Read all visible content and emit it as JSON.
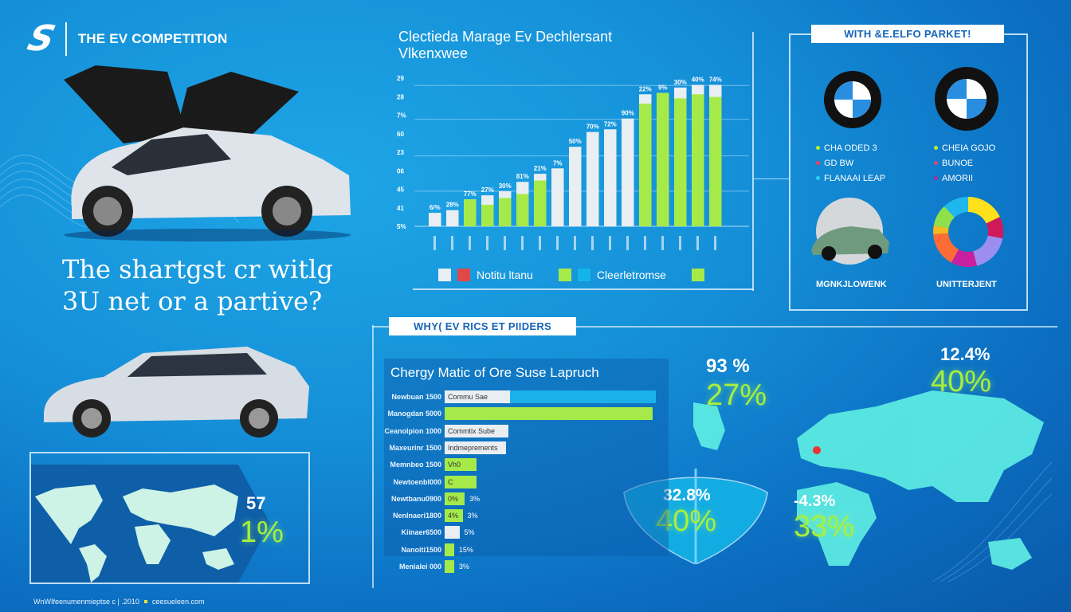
{
  "header": {
    "logo": "S",
    "title": "THE EV COMPETITION"
  },
  "headline": {
    "line1": "The shartgst cr witlg",
    "line2": "3U net or a partive?"
  },
  "chart_data": {
    "type": "bar",
    "title": "Clectieda Marage Ev Dechlersant",
    "subtitle": "Vlkenxwee",
    "ytick_labels": [
      "29",
      "28",
      "7%",
      "60",
      "23",
      "06",
      "45",
      "41",
      "5%"
    ],
    "ylim": [
      0,
      110
    ],
    "grid": true,
    "bars": [
      {
        "label": "6/%",
        "total": 10,
        "green": 0
      },
      {
        "label": "28%",
        "total": 12,
        "green": 0
      },
      {
        "label": "77%",
        "total": 20,
        "green": 20
      },
      {
        "label": "27%",
        "total": 23,
        "green": 16
      },
      {
        "label": "30%",
        "total": 26,
        "green": 21
      },
      {
        "label": "81%",
        "total": 33,
        "green": 24
      },
      {
        "label": "21%",
        "total": 39,
        "green": 34
      },
      {
        "label": "7%",
        "total": 43,
        "green": 0
      },
      {
        "label": "50%",
        "total": 59,
        "green": 0
      },
      {
        "label": "70%",
        "total": 70,
        "green": 0
      },
      {
        "label": "72%",
        "total": 72,
        "green": 0
      },
      {
        "label": "90%",
        "total": 80,
        "green": 0
      },
      {
        "label": "22%",
        "total": 98,
        "green": 91
      },
      {
        "label": "9%",
        "total": 99,
        "green": 99
      },
      {
        "label": "30%",
        "total": 103,
        "green": 95
      },
      {
        "label": "40%",
        "total": 105,
        "green": 98
      },
      {
        "label": "74%",
        "total": 105,
        "green": 96
      }
    ],
    "colors": {
      "green": "#a6ea4a",
      "white": "#e9eef2"
    },
    "legend": [
      {
        "label": "Notitu ltanu",
        "colors": [
          "#e9eef2",
          "#e04848"
        ]
      },
      {
        "label": "Cleerletromse",
        "colors": [
          "#a6ea4a",
          "#14b4e8"
        ]
      }
    ]
  },
  "market": {
    "tag": "WITH &E.ELFO PARKET!",
    "left_legend": [
      {
        "label": "CHA ODED 3",
        "color": "#b6ef3a"
      },
      {
        "label": "GD BW",
        "color": "#e8405a"
      },
      {
        "label": "FLANAAI LEAP",
        "color": "#2ad0f0"
      }
    ],
    "right_legend": [
      {
        "label": "CHEIA GOJO",
        "color": "#b6ef3a"
      },
      {
        "label": "BUNOE",
        "color": "#d04a7a"
      },
      {
        "label": "AMORII",
        "color": "#b02aa0"
      }
    ],
    "car_caption": "MGNKJLOWENK",
    "donut_caption": "UNITTERJENT",
    "donut": [
      {
        "value": 18,
        "color": "#ffe01a"
      },
      {
        "value": 10,
        "color": "#d0195a"
      },
      {
        "value": 18,
        "color": "#9c8ef0"
      },
      {
        "value": 12,
        "color": "#c81ea0"
      },
      {
        "value": 16,
        "color": "#ff6b35"
      },
      {
        "value": 4,
        "color": "#f5b91e"
      },
      {
        "value": 10,
        "color": "#8fe04a"
      },
      {
        "value": 12,
        "color": "#1fb8ee"
      }
    ]
  },
  "section2": {
    "tag": "WHY( EV RICS ET PIIDERS",
    "panel_title": "Chergy Matic of Ore Suse Lapruch",
    "rows": [
      {
        "label": "Newbuan 1500",
        "fill": 1.0,
        "color": "#1bb0e8",
        "inner": "Commu Sae",
        "trail": ""
      },
      {
        "label": "Manogdan 5000",
        "fill": 0.985,
        "color": "#a6ea4a",
        "inner": "",
        "trail": ""
      },
      {
        "label": "Ceanolpion 1000",
        "fill": 0.3,
        "color": "#e9eef2",
        "inner": "Commtix Sube",
        "trail": ""
      },
      {
        "label": "Maxeurinr 1500",
        "fill": 0.29,
        "color": "#e9eef2",
        "inner": "Indmeprements",
        "trail": ""
      },
      {
        "label": "Memnbeo 1500",
        "fill": 0.15,
        "color": "#a6ea4a",
        "inner": "Vh0",
        "trail": ""
      },
      {
        "label": "Newtoenbl000",
        "fill": 0.15,
        "color": "#a6ea4a",
        "inner": "C",
        "trail": ""
      },
      {
        "label": "Newtbanu0900",
        "fill": 0.095,
        "color": "#a6ea4a",
        "inner": "0%",
        "trail": "3%"
      },
      {
        "label": "Nenlnaeri1800",
        "fill": 0.085,
        "color": "#a6ea4a",
        "inner": "4%",
        "trail": "3%"
      },
      {
        "label": "Kiinaer6500",
        "fill": 0.07,
        "color": "#e9eef2",
        "inner": "",
        "trail": "5%"
      },
      {
        "label": "Nanoiti1500",
        "fill": 0.045,
        "color": "#a6ea4a",
        "inner": "",
        "trail": "15%"
      },
      {
        "label": "Menialei 000",
        "fill": 0.045,
        "color": "#a6ea4a",
        "inner": "",
        "trail": "3%"
      }
    ]
  },
  "stats": {
    "a_top": "93 %",
    "a_main": "27%",
    "b_top": "12.4%",
    "b_main": "40%",
    "shield_top": "32.8%",
    "shield_main": "40%",
    "c_top": "-4.3%",
    "c_main": "33%",
    "map_top": "57",
    "map_main": "1%"
  },
  "footer": {
    "text": "WnWIfeenumenmieptse c  |  .2010",
    "site": "ceesueleen.com"
  }
}
